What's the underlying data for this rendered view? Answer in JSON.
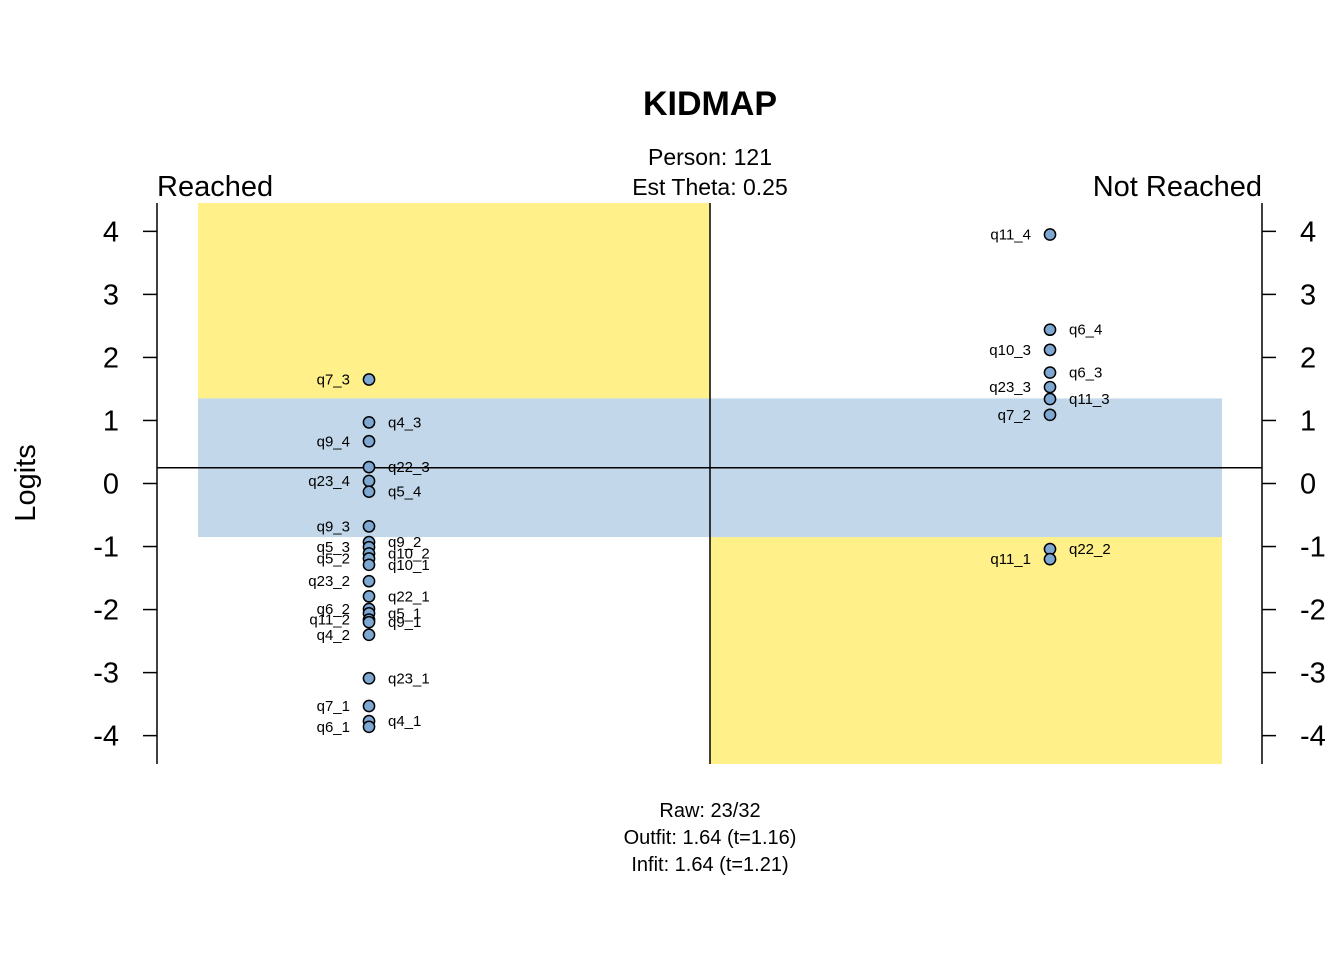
{
  "chart_data": {
    "type": "scatter",
    "title": "KIDMAP",
    "subtitle_lines": [
      "Person: 121",
      "Est Theta: 0.25"
    ],
    "left_header": "Reached",
    "right_header": "Not Reached",
    "ylabel": "Logits",
    "ylim": [
      -4.45,
      4.45
    ],
    "yticks": [
      -4,
      -3,
      -2,
      -1,
      0,
      1,
      2,
      3,
      4
    ],
    "ytick_labels": [
      "-4",
      "-3",
      "-2",
      "-1",
      "0",
      "1",
      "2",
      "3",
      "4"
    ],
    "theta": 0.25,
    "band": [
      -0.85,
      1.35
    ],
    "footer_lines": [
      "Raw: 23/32",
      "Outfit: 1.64 (t=1.16)",
      "Infit: 1.64 (t=1.21)"
    ],
    "colors": {
      "yellow": "#FFF08A",
      "band": "#C2D8EA",
      "point_fill": "#7EA8D2",
      "point_stroke": "#000000"
    },
    "reached": [
      {
        "label": "q7_3",
        "y": 1.65,
        "side": "left"
      },
      {
        "label": "q4_3",
        "y": 0.97,
        "side": "right"
      },
      {
        "label": "q9_4",
        "y": 0.67,
        "side": "left"
      },
      {
        "label": "q22_3",
        "y": 0.26,
        "side": "right"
      },
      {
        "label": "q23_4",
        "y": 0.04,
        "side": "left"
      },
      {
        "label": "q5_4",
        "y": -0.13,
        "side": "right"
      },
      {
        "label": "q9_3",
        "y": -0.68,
        "side": "left"
      },
      {
        "label": "q9_2",
        "y": -0.93,
        "side": "right"
      },
      {
        "label": "q5_3",
        "y": -1.01,
        "side": "left"
      },
      {
        "label": "q10_2",
        "y": -1.11,
        "side": "right"
      },
      {
        "label": "q5_2",
        "y": -1.19,
        "side": "left"
      },
      {
        "label": "q10_1",
        "y": -1.29,
        "side": "right"
      },
      {
        "label": "q23_2",
        "y": -1.55,
        "side": "left"
      },
      {
        "label": "q22_1",
        "y": -1.79,
        "side": "right"
      },
      {
        "label": "q6_2",
        "y": -1.99,
        "side": "left"
      },
      {
        "label": "q5_1",
        "y": -2.06,
        "side": "right"
      },
      {
        "label": "q11_2",
        "y": -2.16,
        "side": "left"
      },
      {
        "label": "q9_1",
        "y": -2.2,
        "side": "right"
      },
      {
        "label": "q4_2",
        "y": -2.4,
        "side": "left"
      },
      {
        "label": "q23_1",
        "y": -3.09,
        "side": "right"
      },
      {
        "label": "q7_1",
        "y": -3.53,
        "side": "left"
      },
      {
        "label": "q4_1",
        "y": -3.77,
        "side": "right"
      },
      {
        "label": "q6_1",
        "y": -3.86,
        "side": "left"
      }
    ],
    "not_reached": [
      {
        "label": "q11_4",
        "y": 3.95,
        "side": "left"
      },
      {
        "label": "q6_4",
        "y": 2.44,
        "side": "right"
      },
      {
        "label": "q10_3",
        "y": 2.12,
        "side": "left"
      },
      {
        "label": "q6_3",
        "y": 1.76,
        "side": "right"
      },
      {
        "label": "q23_3",
        "y": 1.53,
        "side": "left"
      },
      {
        "label": "q11_3",
        "y": 1.34,
        "side": "right"
      },
      {
        "label": "q7_2",
        "y": 1.09,
        "side": "left"
      },
      {
        "label": "q22_2",
        "y": -1.04,
        "side": "right"
      },
      {
        "label": "q11_1",
        "y": -1.2,
        "side": "left"
      }
    ]
  }
}
